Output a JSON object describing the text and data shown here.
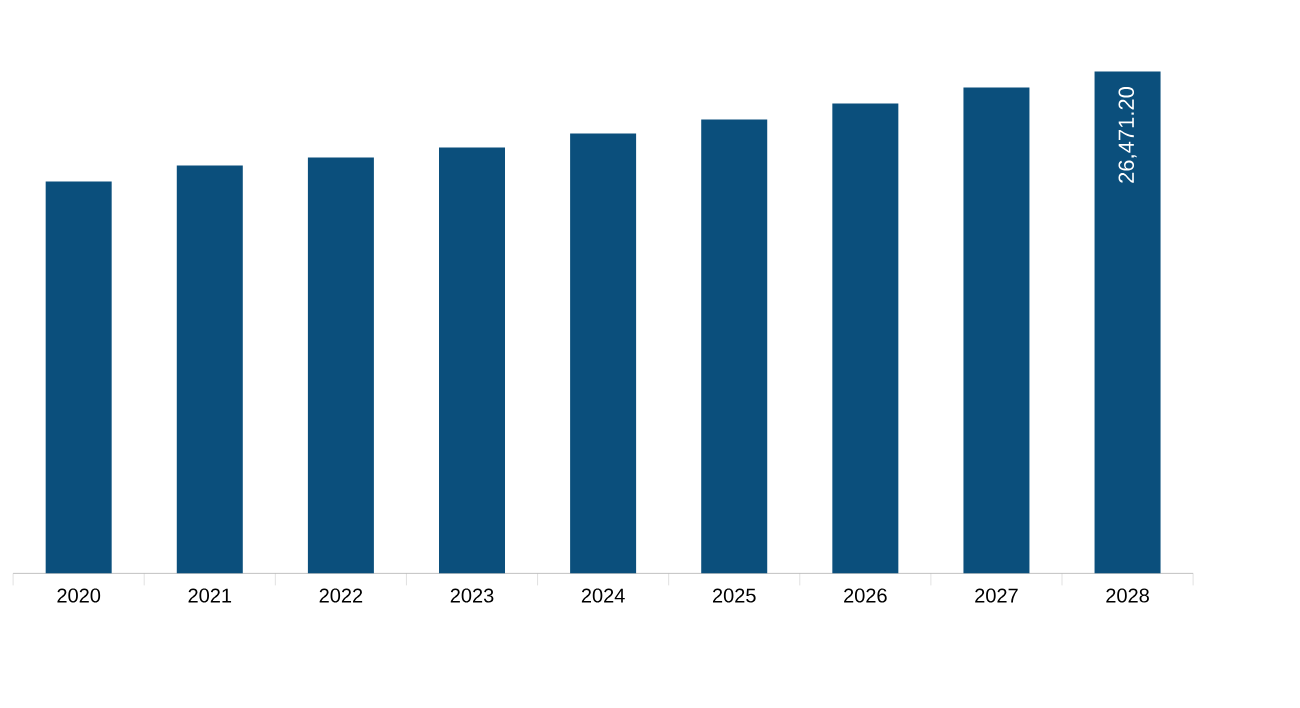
{
  "chart_data": {
    "type": "bar",
    "categories": [
      "2020",
      "2021",
      "2022",
      "2023",
      "2024",
      "2025",
      "2026",
      "2027",
      "2028"
    ],
    "values": [
      20670,
      21510,
      21940,
      22460,
      23200,
      23940,
      24780,
      25630,
      26471.2
    ],
    "value_labels": [
      null,
      null,
      null,
      null,
      null,
      null,
      null,
      null,
      "26,471.20"
    ],
    "color": "#0b4f7c"
  }
}
